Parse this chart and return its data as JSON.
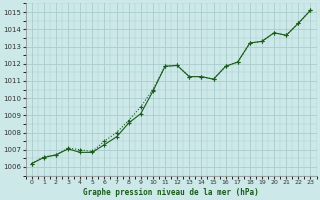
{
  "xlabel": "Graphe pression niveau de la mer (hPa)",
  "ylim": [
    1005.5,
    1015.5
  ],
  "xlim": [
    -0.5,
    23.5
  ],
  "yticks": [
    1006,
    1007,
    1008,
    1009,
    1010,
    1011,
    1012,
    1013,
    1014,
    1015
  ],
  "xticks": [
    0,
    1,
    2,
    3,
    4,
    5,
    6,
    7,
    8,
    9,
    10,
    11,
    12,
    13,
    14,
    15,
    16,
    17,
    18,
    19,
    20,
    21,
    22,
    23
  ],
  "bg_color": "#cce8e8",
  "grid_color": "#aacccc",
  "line_color": "#1a5c1a",
  "wavy_x": [
    0,
    1,
    2,
    3,
    4,
    5,
    6,
    7,
    8,
    9,
    10,
    11,
    12,
    13,
    14,
    15,
    16,
    17,
    18,
    19,
    20,
    21,
    22,
    23
  ],
  "wavy_y": [
    1006.2,
    1006.6,
    1006.7,
    1007.1,
    1007.0,
    1006.9,
    1007.5,
    1008.0,
    1008.7,
    1009.5,
    1010.5,
    1011.85,
    1011.9,
    1011.25,
    1011.25,
    1011.1,
    1011.85,
    1012.1,
    1013.2,
    1013.3,
    1013.8,
    1013.65,
    1014.35,
    1015.1
  ],
  "trend_x": [
    0,
    1,
    2,
    3,
    4,
    5,
    6,
    7,
    8,
    9,
    10,
    11,
    12,
    13,
    14,
    15,
    16,
    17,
    18,
    19,
    20,
    21,
    22,
    23
  ],
  "trend_y": [
    1006.2,
    1006.55,
    1006.7,
    1007.05,
    1006.85,
    1006.85,
    1007.3,
    1007.75,
    1008.55,
    1009.1,
    1010.4,
    1011.85,
    1011.9,
    1011.25,
    1011.25,
    1011.1,
    1011.85,
    1012.1,
    1013.2,
    1013.3,
    1013.8,
    1013.65,
    1014.35,
    1015.1
  ],
  "marker": "+"
}
